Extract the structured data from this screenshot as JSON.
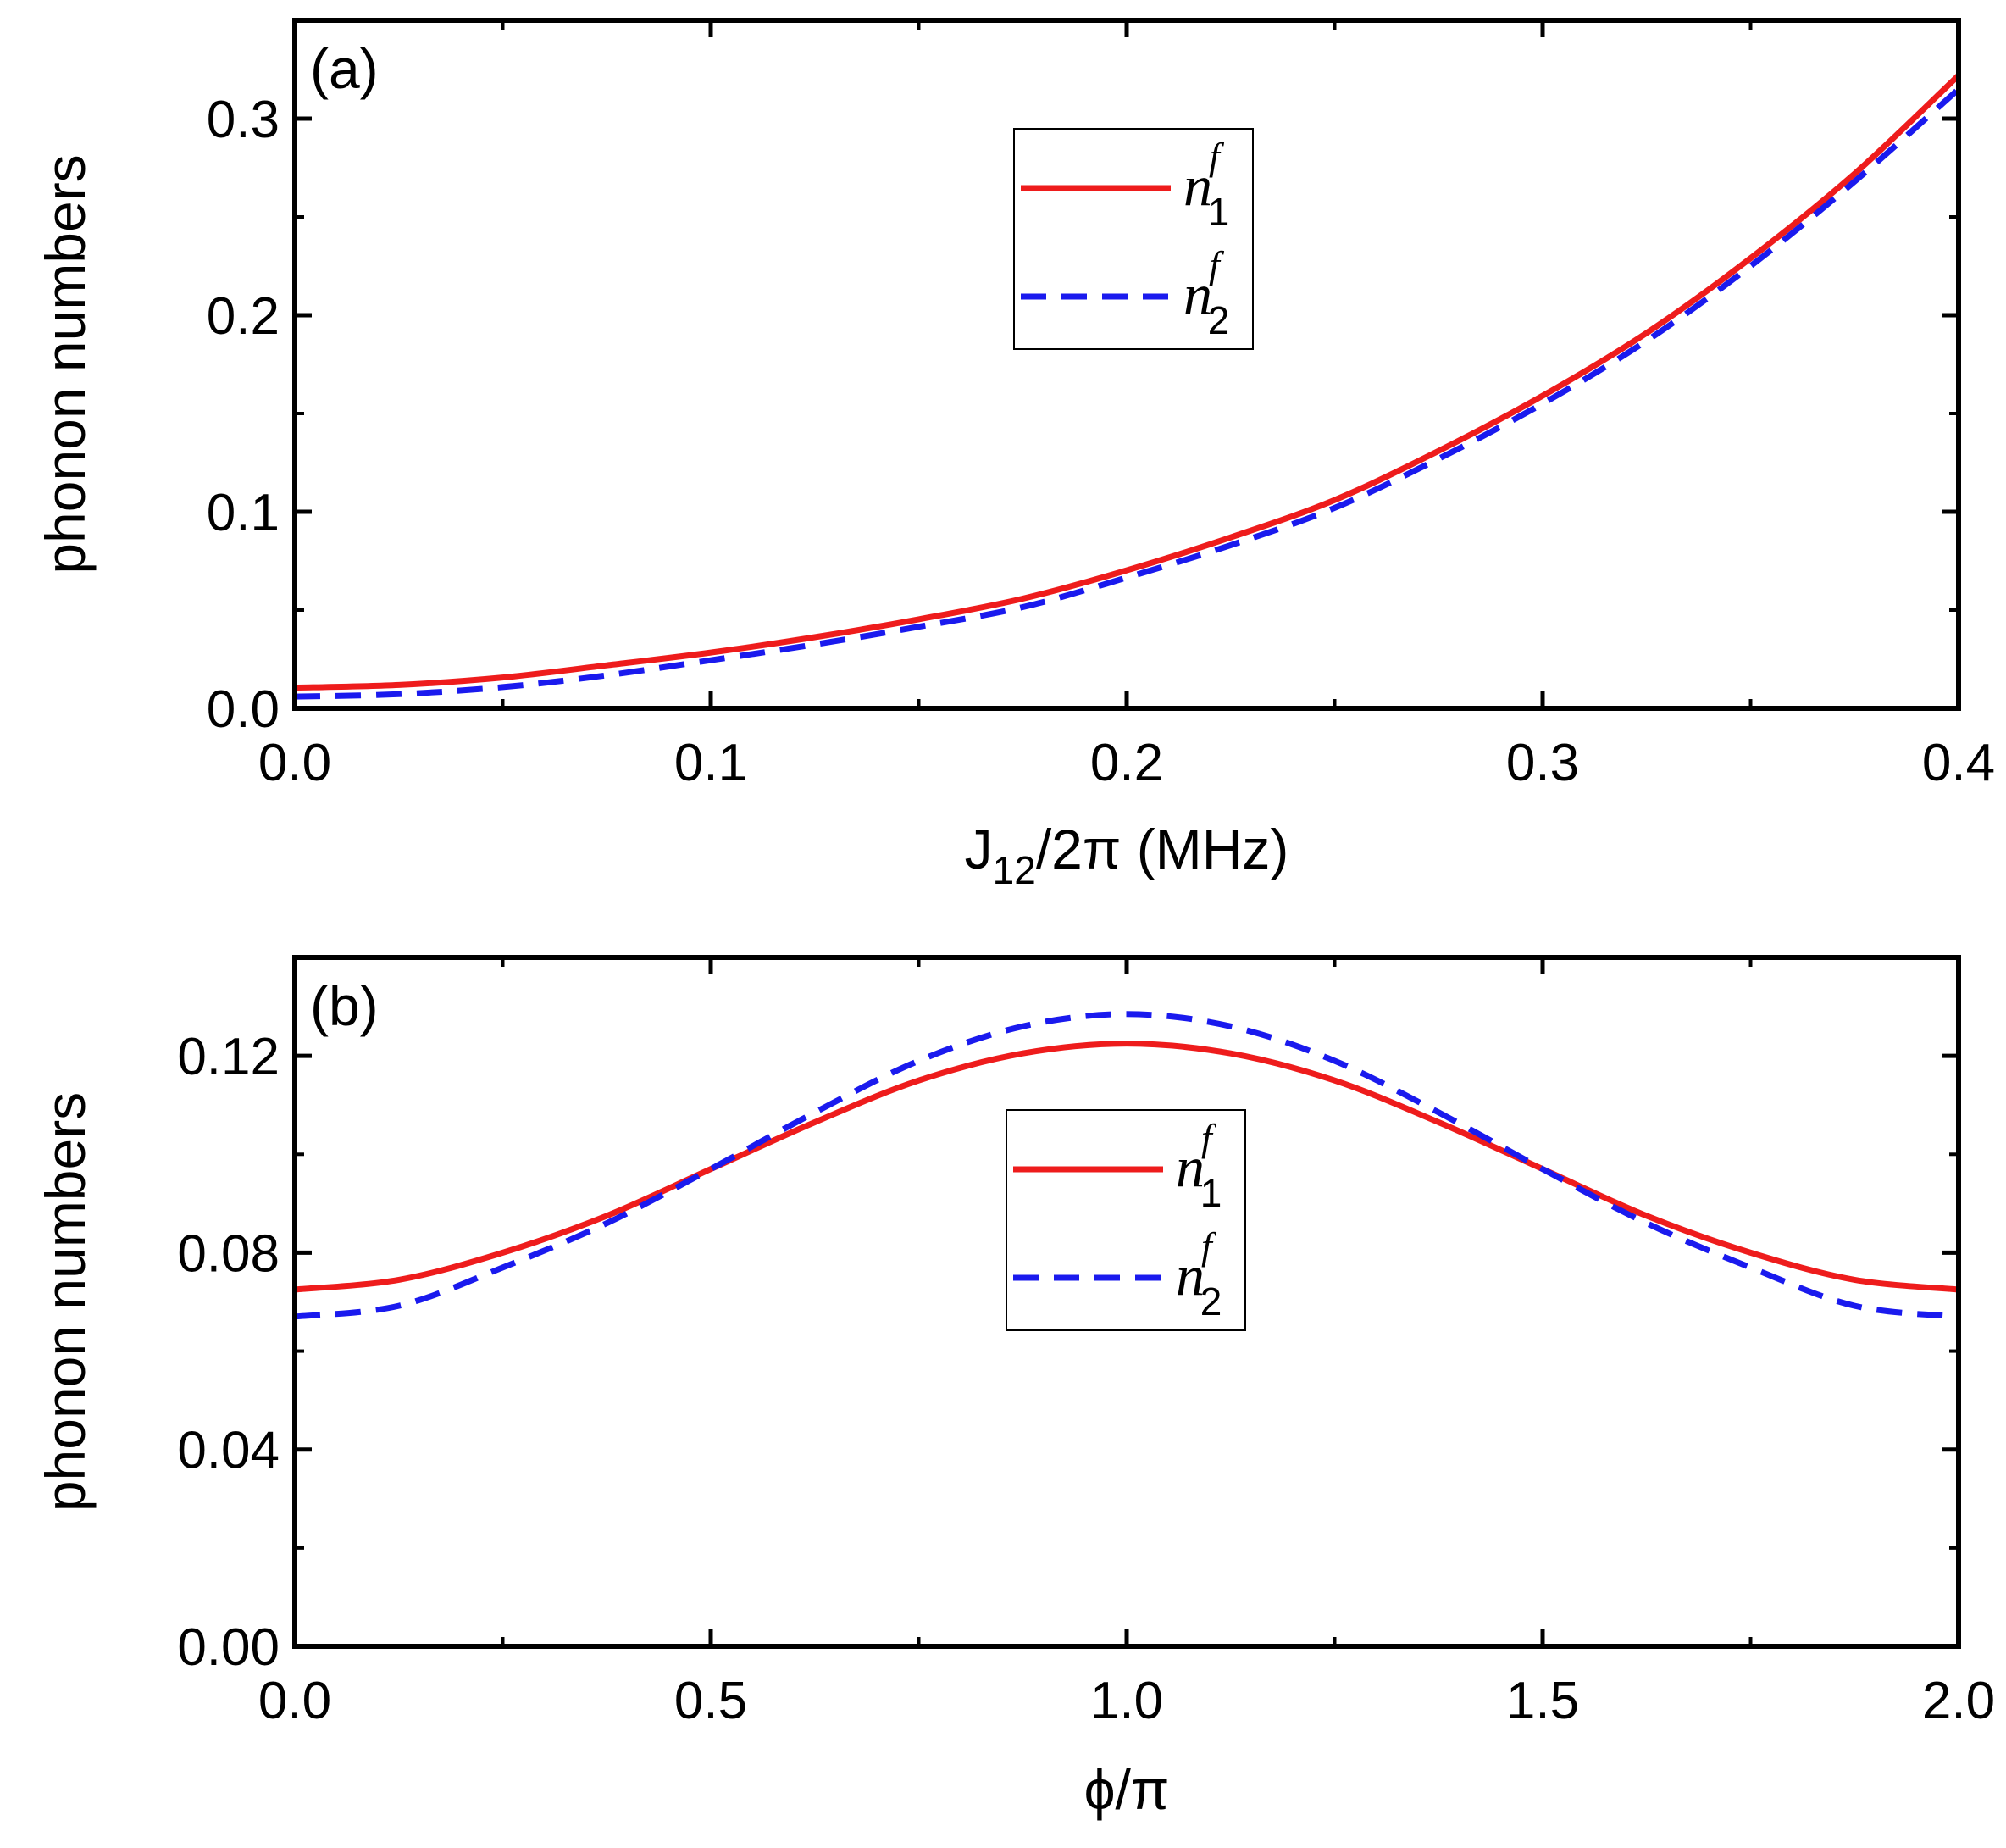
{
  "chart_data": [
    {
      "type": "line",
      "panel_label": "(a)",
      "xlabel_main": "J",
      "xlabel_sub": "12",
      "xlabel_rest": "/2π (MHz)",
      "ylabel": "phonon numbers",
      "xlim": [
        0.0,
        0.4
      ],
      "ylim": [
        0.0,
        0.35
      ],
      "xticks": [
        "0.0",
        "0.1",
        "0.2",
        "0.3",
        "0.4"
      ],
      "yticks": [
        "0.0",
        "0.1",
        "0.2",
        "0.3"
      ],
      "legend_position": "upper-center",
      "x": [
        0.0,
        0.025,
        0.05,
        0.075,
        0.1,
        0.125,
        0.15,
        0.175,
        0.2,
        0.225,
        0.25,
        0.275,
        0.3,
        0.325,
        0.35,
        0.375,
        0.4
      ],
      "series": [
        {
          "name": "n",
          "sup": "f",
          "sub": "1",
          "color": "#ee1c1c",
          "style": "solid",
          "values": [
            0.0105,
            0.0119,
            0.0157,
            0.0219,
            0.0284,
            0.0362,
            0.0453,
            0.0558,
            0.0702,
            0.087,
            0.106,
            0.131,
            0.159,
            0.191,
            0.229,
            0.272,
            0.322
          ]
        },
        {
          "name": "n",
          "sup": "f",
          "sub": "2",
          "color": "#1a1aee",
          "style": "dashed",
          "values": [
            0.006,
            0.0072,
            0.0108,
            0.0168,
            0.0245,
            0.0325,
            0.0415,
            0.0515,
            0.0665,
            0.083,
            0.102,
            0.127,
            0.155,
            0.187,
            0.225,
            0.268,
            0.315
          ]
        }
      ]
    },
    {
      "type": "line",
      "panel_label": "(b)",
      "xlabel_main": "ϕ/π",
      "xlabel_sub": "",
      "xlabel_rest": "",
      "ylabel": "phonon numbers",
      "xlim": [
        0.0,
        2.0
      ],
      "ylim": [
        0.0,
        0.14
      ],
      "xticks": [
        "0.0",
        "0.5",
        "1.0",
        "1.5",
        "2.0"
      ],
      "yticks": [
        "0.00",
        "0.04",
        "0.08",
        "0.12"
      ],
      "legend_position": "center",
      "x": [
        0.0,
        0.125,
        0.25,
        0.375,
        0.5,
        0.625,
        0.75,
        0.875,
        1.0,
        1.125,
        1.25,
        1.375,
        1.5,
        1.625,
        1.75,
        1.875,
        2.0
      ],
      "series": [
        {
          "name": "n",
          "sup": "f",
          "sub": "1",
          "color": "#ee1c1c",
          "style": "solid",
          "values": [
            0.0725,
            0.0745,
            0.08,
            0.0875,
            0.097,
            0.1065,
            0.115,
            0.1205,
            0.1225,
            0.1205,
            0.115,
            0.1065,
            0.097,
            0.0875,
            0.08,
            0.0745,
            0.0725
          ]
        },
        {
          "name": "n",
          "sup": "f",
          "sub": "2",
          "color": "#1a1aee",
          "style": "dashed",
          "values": [
            0.067,
            0.0692,
            0.077,
            0.086,
            0.097,
            0.1085,
            0.119,
            0.126,
            0.1285,
            0.126,
            0.119,
            0.1085,
            0.097,
            0.086,
            0.077,
            0.0692,
            0.067
          ]
        }
      ]
    }
  ]
}
